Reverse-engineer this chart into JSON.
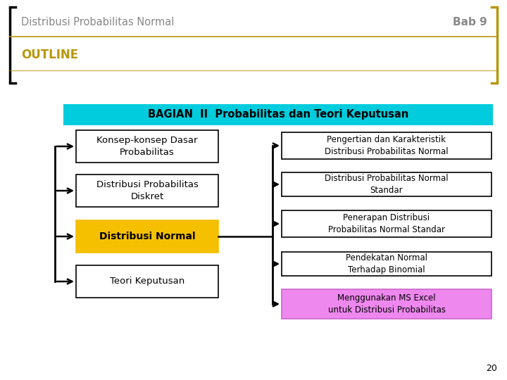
{
  "title": "Distribusi Probabilitas Normal",
  "bab": "Bab 9",
  "outline": "OUTLINE",
  "page_num": "20",
  "outline_color": "#B8960C",
  "bagian_text": "BAGIAN  II  Probabilitas dan Teori Keputusan",
  "bagian_bg": "#00CCDD",
  "left_boxes": [
    {
      "text": "Konsep-konsep Dasar\nProbabilitas",
      "bg": "#ffffff",
      "border": "#000000",
      "bold": false
    },
    {
      "text": "Distribusi Probabilitas\nDiskret",
      "bg": "#ffffff",
      "border": "#000000",
      "bold": false
    },
    {
      "text": "Distribusi Normal",
      "bg": "#F5C000",
      "border": "#F5C000",
      "bold": true
    },
    {
      "text": "Teori Keputusan",
      "bg": "#ffffff",
      "border": "#000000",
      "bold": false
    }
  ],
  "right_boxes": [
    {
      "text": "Pengertian dan Karakteristik\nDistribusi Probabilitas Normal",
      "bg": "#ffffff",
      "border": "#000000",
      "bold": false
    },
    {
      "text": "Distribusi Probabilitas Normal\nStandar",
      "bg": "#ffffff",
      "border": "#000000",
      "bold": false
    },
    {
      "text": "Penerapan Distribusi\nProbabilitas Normal Standar",
      "bg": "#ffffff",
      "border": "#000000",
      "bold": false
    },
    {
      "text": "Pendekatan Normal\nTerhadap Binomial",
      "bg": "#ffffff",
      "border": "#000000",
      "bold": false
    },
    {
      "text": "Menggunakan MS Excel\nuntuk Distribusi Probabilitas",
      "bg": "#EE88EE",
      "border": "#CC66CC",
      "bold": false
    }
  ]
}
